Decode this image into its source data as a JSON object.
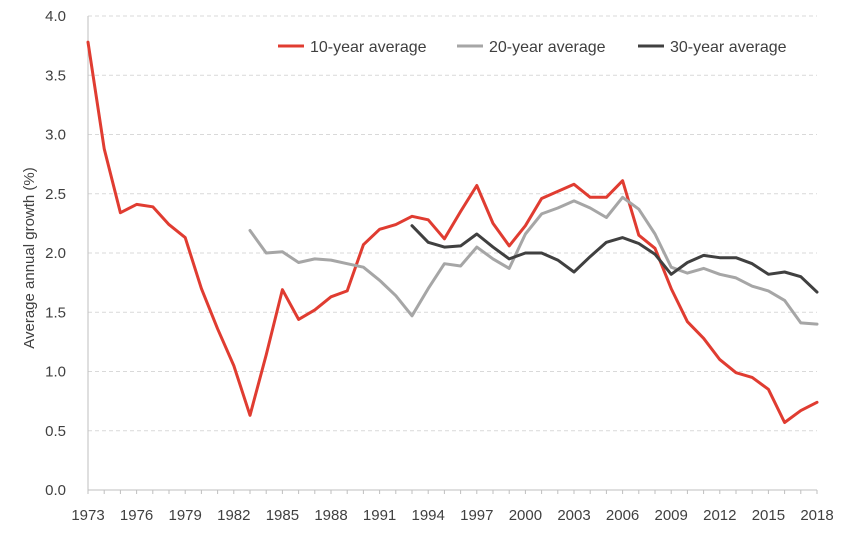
{
  "chart_data": {
    "type": "line",
    "title": "",
    "xlabel": "",
    "ylabel": "Average annual growth (%)",
    "ylim": [
      0,
      4
    ],
    "yticks": [
      "0.0",
      "0.5",
      "1.0",
      "1.5",
      "2.0",
      "2.5",
      "3.0",
      "3.5",
      "4.0"
    ],
    "xlim": [
      1973,
      2018
    ],
    "xticks": [
      "1973",
      "1976",
      "1979",
      "1982",
      "1985",
      "1988",
      "1991",
      "1994",
      "1997",
      "2000",
      "2003",
      "2006",
      "2009",
      "2012",
      "2015",
      "2018"
    ],
    "grid": true,
    "legend_position": "top",
    "series": [
      {
        "name": "10-year average",
        "color": "#e03c31",
        "x": [
          1973,
          1974,
          1975,
          1976,
          1977,
          1978,
          1979,
          1980,
          1981,
          1982,
          1983,
          1984,
          1985,
          1986,
          1987,
          1988,
          1989,
          1990,
          1991,
          1992,
          1993,
          1994,
          1995,
          1996,
          1997,
          1998,
          1999,
          2000,
          2001,
          2002,
          2003,
          2004,
          2005,
          2006,
          2007,
          2008,
          2009,
          2010,
          2011,
          2012,
          2013,
          2014,
          2015,
          2016,
          2017,
          2018
        ],
        "y": [
          3.78,
          2.88,
          2.34,
          2.41,
          2.39,
          2.24,
          2.13,
          1.7,
          1.36,
          1.05,
          0.63,
          1.14,
          1.69,
          1.44,
          1.52,
          1.63,
          1.68,
          2.07,
          2.2,
          2.24,
          2.31,
          2.28,
          2.12,
          2.35,
          2.57,
          2.25,
          2.06,
          2.23,
          2.46,
          2.52,
          2.58,
          2.47,
          2.47,
          2.61,
          2.15,
          2.04,
          1.7,
          1.42,
          1.28,
          1.1,
          0.99,
          0.95,
          0.85,
          0.57,
          0.67,
          0.74
        ]
      },
      {
        "name": "20-year average",
        "color": "#a6a6a6",
        "x": [
          1983,
          1984,
          1985,
          1986,
          1987,
          1988,
          1989,
          1990,
          1991,
          1992,
          1993,
          1994,
          1995,
          1996,
          1997,
          1998,
          1999,
          2000,
          2001,
          2002,
          2003,
          2004,
          2005,
          2006,
          2007,
          2008,
          2009,
          2010,
          2011,
          2012,
          2013,
          2014,
          2015,
          2016,
          2017,
          2018
        ],
        "y": [
          2.19,
          2.0,
          2.01,
          1.92,
          1.95,
          1.94,
          1.91,
          1.88,
          1.77,
          1.64,
          1.47,
          1.7,
          1.91,
          1.89,
          2.05,
          1.95,
          1.87,
          2.16,
          2.33,
          2.38,
          2.44,
          2.38,
          2.3,
          2.47,
          2.37,
          2.16,
          1.88,
          1.83,
          1.87,
          1.82,
          1.79,
          1.72,
          1.68,
          1.6,
          1.41,
          1.4
        ]
      },
      {
        "name": "30-year average",
        "color": "#404040",
        "x": [
          1993,
          1994,
          1995,
          1996,
          1997,
          1998,
          1999,
          2000,
          2001,
          2002,
          2003,
          2004,
          2005,
          2006,
          2007,
          2008,
          2009,
          2010,
          2011,
          2012,
          2013,
          2014,
          2015,
          2016,
          2017,
          2018
        ],
        "y": [
          2.23,
          2.09,
          2.05,
          2.06,
          2.16,
          2.05,
          1.95,
          2.0,
          2.0,
          1.94,
          1.84,
          1.97,
          2.09,
          2.13,
          2.08,
          1.99,
          1.82,
          1.92,
          1.98,
          1.96,
          1.96,
          1.91,
          1.82,
          1.84,
          1.8,
          1.67
        ]
      }
    ]
  }
}
